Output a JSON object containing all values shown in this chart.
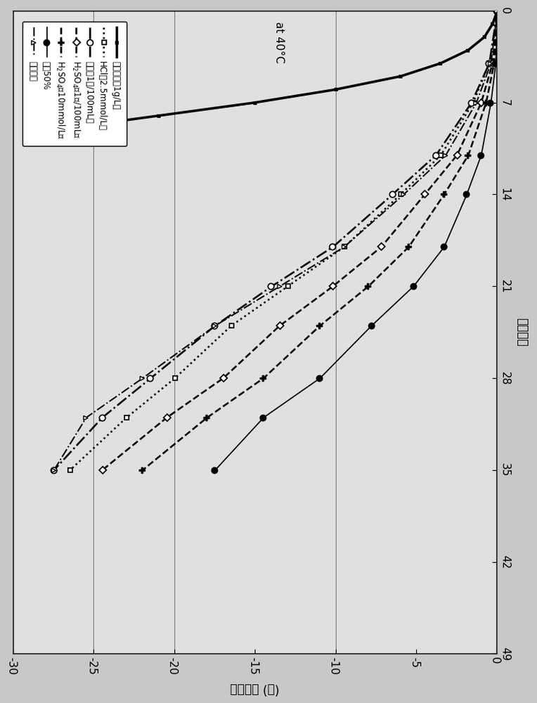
{
  "title": "at 40°C",
  "x_label_rotated": "(％) 吸光度差",
  "y_label_rotated": "保存天数",
  "days_lim": [
    0,
    49
  ],
  "abs_lim": [
    0,
    -30
  ],
  "days_ticks": [
    0,
    7,
    14,
    21,
    28,
    35,
    42,
    49
  ],
  "abs_ticks": [
    0,
    -5,
    -10,
    -15,
    -20,
    -25,
    -30
  ],
  "horizontal_lines_abs": [
    -10,
    -20,
    -25
  ],
  "background_color": "#c8c8c8",
  "plot_bg_color": "#e0e0e0",
  "series": [
    {
      "label": "盐酸羟胺（1g/L）",
      "days": [
        0,
        1,
        2,
        3,
        4,
        5,
        6,
        7,
        8,
        9,
        10
      ],
      "abs": [
        0,
        -0.3,
        -0.8,
        -1.8,
        -3.5,
        -6.0,
        -10.0,
        -15.0,
        -21.0,
        -27.0,
        -28.5
      ],
      "style": "-",
      "marker": "s",
      "ms": 3,
      "color": "black",
      "lw": 2.5,
      "mfc": "black",
      "mew": 0.8,
      "markevery": 1
    },
    {
      "label": "HCl（2.5mmol/L）",
      "days": [
        0,
        4,
        7,
        11,
        14,
        18,
        21,
        24,
        28,
        31,
        35
      ],
      "abs": [
        0,
        -0.5,
        -1.5,
        -3.5,
        -6.0,
        -9.5,
        -13.0,
        -16.5,
        -20.0,
        -23.0,
        -26.5
      ],
      "style": ":",
      "marker": "s",
      "ms": 5,
      "color": "black",
      "lw": 1.8,
      "mfc": "white",
      "mew": 1.2,
      "markevery": 2
    },
    {
      "label": "醛酸（1滑/100mL）",
      "days": [
        0,
        4,
        7,
        11,
        14,
        18,
        21,
        24,
        28,
        31,
        35
      ],
      "abs": [
        0,
        -0.5,
        -1.6,
        -3.8,
        -6.5,
        -10.2,
        -14.0,
        -17.5,
        -21.5,
        -24.5,
        -27.5
      ],
      "style": "-.",
      "marker": "o",
      "ms": 6,
      "color": "black",
      "lw": 1.8,
      "mfc": "white",
      "mew": 1.2,
      "markevery": 2
    },
    {
      "label": "H₂SO₄（1滑/100mL）",
      "days": [
        0,
        4,
        7,
        11,
        14,
        18,
        21,
        24,
        28,
        31,
        35
      ],
      "abs": [
        0,
        -0.3,
        -1.0,
        -2.5,
        -4.5,
        -7.2,
        -10.2,
        -13.5,
        -17.0,
        -20.5,
        -24.5
      ],
      "style": "--",
      "marker": "D",
      "ms": 5,
      "color": "black",
      "lw": 1.8,
      "mfc": "white",
      "mew": 1.2,
      "markevery": 2
    },
    {
      "label": "H₂SO₄！10mmol/L）",
      "days": [
        0,
        4,
        7,
        11,
        14,
        18,
        21,
        24,
        28,
        31,
        35
      ],
      "abs": [
        0,
        -0.2,
        -0.7,
        -1.8,
        -3.3,
        -5.5,
        -8.0,
        -11.0,
        -14.5,
        -18.0,
        -22.0
      ],
      "style": "--",
      "marker": "P",
      "ms": 6,
      "color": "black",
      "lw": 1.8,
      "mfc": "black",
      "mew": 1.0,
      "markevery": 2
    },
    {
      "label": "丙酡50%",
      "days": [
        0,
        4,
        7,
        11,
        14,
        18,
        21,
        24,
        28,
        31,
        35
      ],
      "abs": [
        0,
        -0.1,
        -0.4,
        -1.0,
        -1.9,
        -3.3,
        -5.2,
        -7.8,
        -11.0,
        -14.5,
        -17.5
      ],
      "style": "-",
      "marker": "o",
      "ms": 6,
      "color": "black",
      "lw": 1.2,
      "mfc": "black",
      "mew": 1.0,
      "markevery": 2
    },
    {
      "label": "无添加剂",
      "days": [
        0,
        4,
        7,
        11,
        14,
        18,
        21,
        24,
        28,
        31,
        35
      ],
      "abs": [
        0,
        -0.4,
        -1.3,
        -3.2,
        -5.8,
        -9.5,
        -13.5,
        -17.5,
        -22.0,
        -25.5,
        -27.5
      ],
      "style": "-.",
      "marker": "^",
      "ms": 5,
      "color": "black",
      "lw": 1.4,
      "mfc": "white",
      "mew": 1.0,
      "markevery": 2
    }
  ],
  "legend_labels": [
    "盐酸羟胺（1g/L）",
    "HCl（2.5mmol/L）",
    "醛酸（1滑/100mL）",
    "H₂SO₄（1滑/100mL）",
    "H₂SO₄！10mmol/L）",
    "丙酡50%",
    "无添加剂"
  ]
}
